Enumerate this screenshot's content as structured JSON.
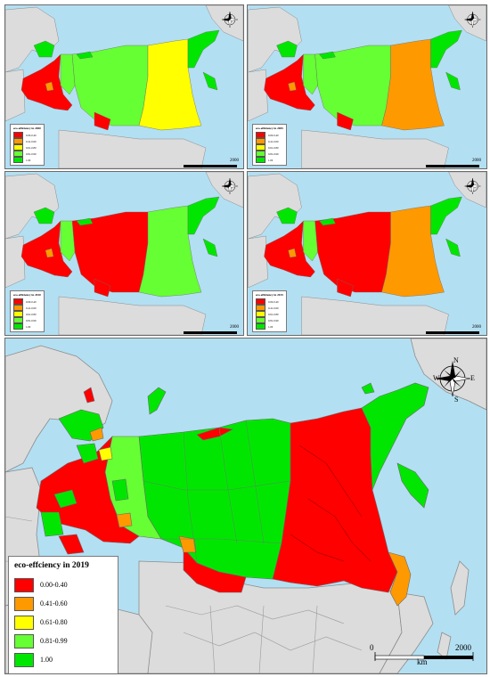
{
  "colors": {
    "sea": "#b3dff2",
    "land_other": "#dcdcdc",
    "border": "#8c8c8c",
    "class_0_00_0_40": "#ff0000",
    "class_0_41_0_60": "#ff9900",
    "class_0_61_0_80": "#ffff00",
    "class_0_81_0_99": "#66ff33",
    "class_1_00": "#00e600"
  },
  "icons": {
    "compass": "compass-rose-icon"
  },
  "compass_letters": {
    "n": "N",
    "s": "S",
    "e": "E",
    "w": "W"
  },
  "scale": {
    "zero": "0",
    "max": "2000",
    "unit": "km"
  },
  "legend_classes": [
    "0.00-0.40",
    "0.41-0.60",
    "0.61-0.80",
    "0.81-0.99",
    "1.00"
  ],
  "small_panels": [
    {
      "legend_title": "eco-efficiency in 2000",
      "dominant": "class_0_81_0_99",
      "east": "class_0_61_0_80",
      "europe": "class_0_00_0_40"
    },
    {
      "legend_title": "eco-efficiency in 2005",
      "dominant": "class_0_81_0_99",
      "east": "class_0_41_0_60",
      "europe": "class_0_00_0_40"
    },
    {
      "legend_title": "eco-efficiency in 2010",
      "dominant": "class_0_00_0_40",
      "east": "class_0_81_0_99",
      "europe": "class_0_00_0_40"
    },
    {
      "legend_title": "eco-efficiency in 2015",
      "dominant": "class_0_00_0_40",
      "east": "class_0_41_0_60",
      "europe": "class_0_00_0_40"
    }
  ],
  "main_panel": {
    "legend_title": "eco-effciency in 2019",
    "classes": [
      "0.00-0.40",
      "0.41-0.60",
      "0.61-0.80",
      "0.81-0.99",
      "1.00"
    ]
  }
}
